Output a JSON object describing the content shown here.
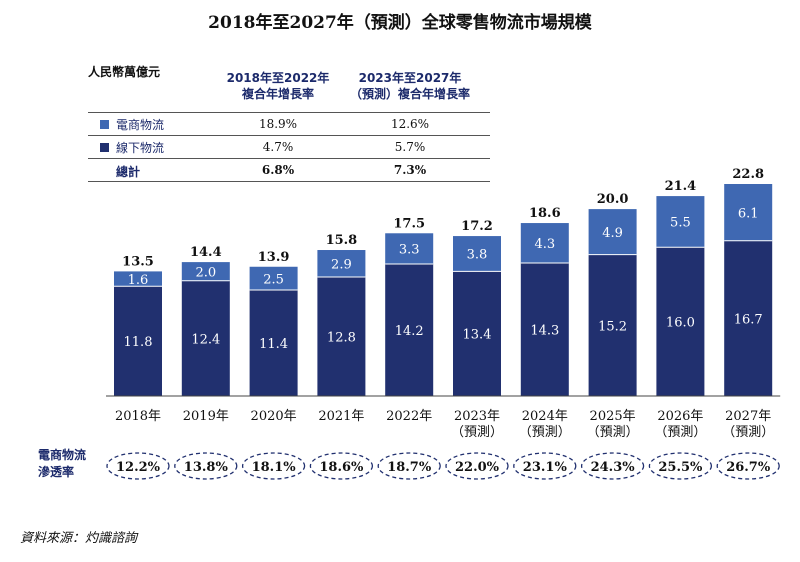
{
  "title": "2018年至2027年（預測）全球零售物流市場規模",
  "unit": "人民幣萬億元",
  "table": {
    "col1_line1": "2018年至2022年",
    "col1_line2": "複合年增長率",
    "col2_line1": "2023年至2027年",
    "col2_line2": "（預測）複合年增長率",
    "rows": [
      {
        "label": "電商物流",
        "v1": "18.9%",
        "v2": "12.6%",
        "bold": false
      },
      {
        "label": "線下物流",
        "v1": "4.7%",
        "v2": "5.7%",
        "bold": false
      },
      {
        "label": "總計",
        "v1": "6.8%",
        "v2": "7.3%",
        "bold": true
      }
    ]
  },
  "chart_data": {
    "type": "bar",
    "stacked": true,
    "categories": [
      "2018年",
      "2019年",
      "2020年",
      "2021年",
      "2022年",
      "2023年\n（預測）",
      "2024年\n（預測）",
      "2025年\n（預測）",
      "2026年\n（預測）",
      "2027年\n（預測）"
    ],
    "series": [
      {
        "name": "線下物流",
        "values": [
          11.8,
          12.4,
          11.4,
          12.8,
          14.2,
          13.4,
          14.3,
          15.2,
          16.0,
          16.7
        ]
      },
      {
        "name": "電商物流",
        "values": [
          1.6,
          2.0,
          2.5,
          2.9,
          3.3,
          3.8,
          4.3,
          4.9,
          5.5,
          6.1
        ]
      }
    ],
    "totals": [
      13.5,
      14.4,
      13.9,
      15.8,
      17.5,
      17.2,
      18.6,
      20.0,
      21.4,
      22.8
    ],
    "ylim": [
      0,
      22.8
    ],
    "legend": "top-left table"
  },
  "penetration": {
    "label_line1": "電商物流",
    "label_line2": "滲透率",
    "values": [
      "12.2%",
      "13.8%",
      "18.1%",
      "18.6%",
      "18.7%",
      "22.0%",
      "23.1%",
      "24.3%",
      "25.5%",
      "26.7%"
    ]
  },
  "colors": {
    "dark": "#21306f",
    "light": "#3f68b2",
    "text": "#1c2a6b"
  },
  "source": "資料來源：灼識諮詢"
}
